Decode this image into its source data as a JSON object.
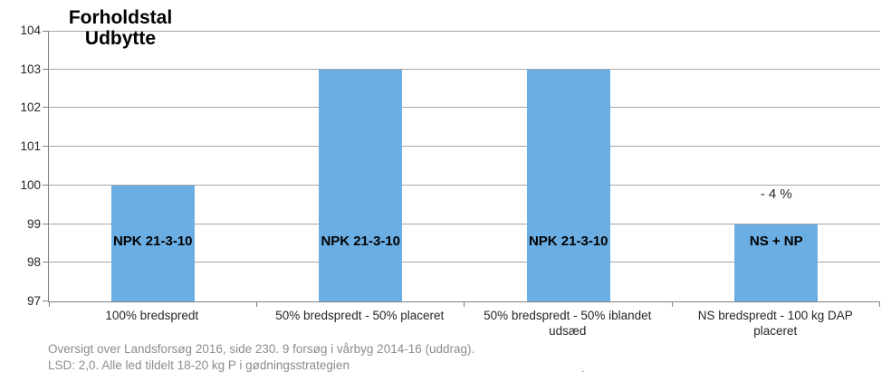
{
  "title": {
    "line1": "Forholdstal",
    "line2": "Udbytte"
  },
  "chart_data": {
    "type": "bar",
    "title": "Forholdstal Udbytte",
    "categories": [
      "100% bredspredt",
      "50% bredspredt - 50% placeret",
      "50% bredspredt - 50% iblandet udsæd",
      "NS bredspredt - 100 kg DAP placeret"
    ],
    "values": [
      100,
      103,
      103,
      99
    ],
    "bar_labels": [
      "NPK 21-3-10",
      "NPK 21-3-10",
      "NPK 21-3-10",
      "NS + NP"
    ],
    "annotations": [
      {
        "category_index": 3,
        "text": "- 4 %"
      }
    ],
    "xlabel": "",
    "ylabel": "Forholdstal Udbytte",
    "ylim": [
      97,
      104
    ],
    "yticks": [
      97,
      98,
      99,
      100,
      101,
      102,
      103,
      104
    ],
    "grid": true,
    "legend": "none",
    "bar_color": "#6BAEE3"
  },
  "footer": {
    "line1": "Oversigt over Landsforsøg 2016, side 230. 9 forsøg i vårbyg 2014-16 (uddrag).",
    "line2": "LSD: 2,0. Alle led tildelt 18-20 kg P i gødningsstrategien",
    "stray_mark": "."
  },
  "colors": {
    "bar": "#6BAEE3",
    "gridline": "#A6A6A6",
    "axis": "#808080",
    "footer_text": "#8C8C8C"
  }
}
